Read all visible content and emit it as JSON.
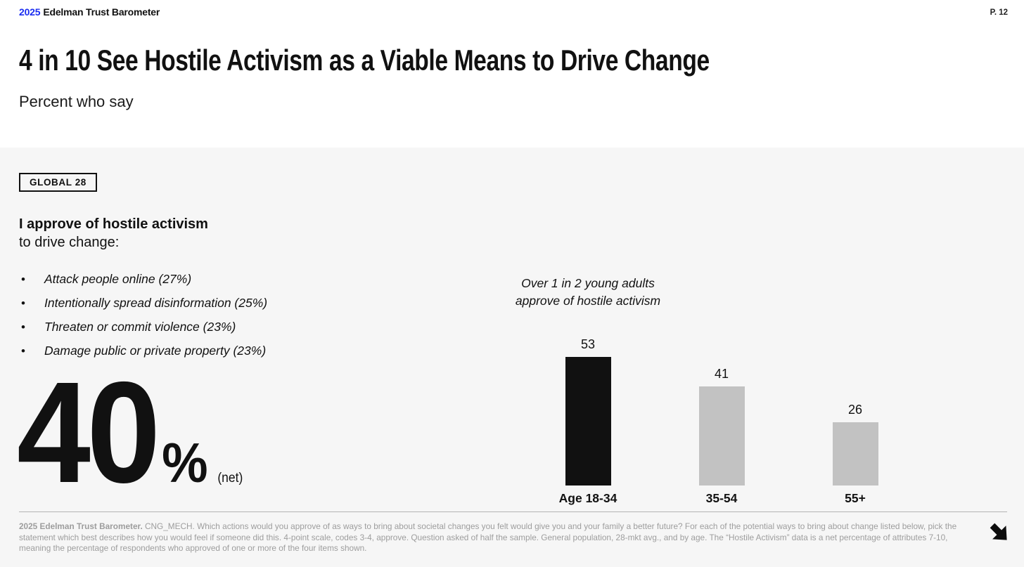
{
  "header": {
    "year": "2025",
    "brand": "Edelman Trust Barometer",
    "page_number": "P. 12"
  },
  "title": "4 in 10 See Hostile Activism as a Viable Means to Drive Change",
  "subtitle": "Percent who say",
  "panel": {
    "scope_badge": "GLOBAL 28",
    "statement_bold": "I approve of hostile activism",
    "statement_rest": "to drive change:",
    "bullets": [
      "Attack people online (27%)",
      "Intentionally spread disinformation (25%)",
      "Threaten or commit violence (23%)",
      "Damage public or private property (23%)"
    ],
    "net": {
      "value": "40",
      "percent_sign": "%",
      "suffix": "(net)"
    }
  },
  "chart_data": {
    "type": "bar",
    "categories": [
      "Age 18-34",
      "35-54",
      "55+"
    ],
    "values": [
      53,
      41,
      26
    ],
    "bar_colors": [
      "#111111",
      "#c2c2c2",
      "#c2c2c2"
    ],
    "value_labels": true,
    "annotation_lines": [
      "Over 1 in 2 young adults",
      "approve of hostile activism"
    ],
    "title": "",
    "xlabel": "",
    "ylabel": "",
    "ylim": [
      0,
      60
    ],
    "grid": false,
    "legend": "none"
  },
  "footnote": {
    "lead": "2025 Edelman Trust Barometer.",
    "text": "  CNG_MECH. Which actions would you approve of as ways to bring about societal changes you felt would give you and your family a better future? For each of the potential ways to bring about change listed below, pick the statement which best describes how you would feel if someone did this. 4-point scale, codes 3-4, approve. Question asked of half the sample. General population, 28-mkt avg., and by age. The “Hostile Activism” data is a net percentage of attributes 7-10, meaning the percentage of respondents who approved of one or more of the four items shown."
  },
  "icons": {
    "next_arrow": "down-right arrow"
  },
  "colors": {
    "accent_blue": "#1b2df0",
    "bar_dark": "#111111",
    "bar_light": "#c2c2c2",
    "panel_bg": "#f6f6f6",
    "divider_gray": "#b3b3b3",
    "footnote_gray": "#9d9d9d"
  }
}
